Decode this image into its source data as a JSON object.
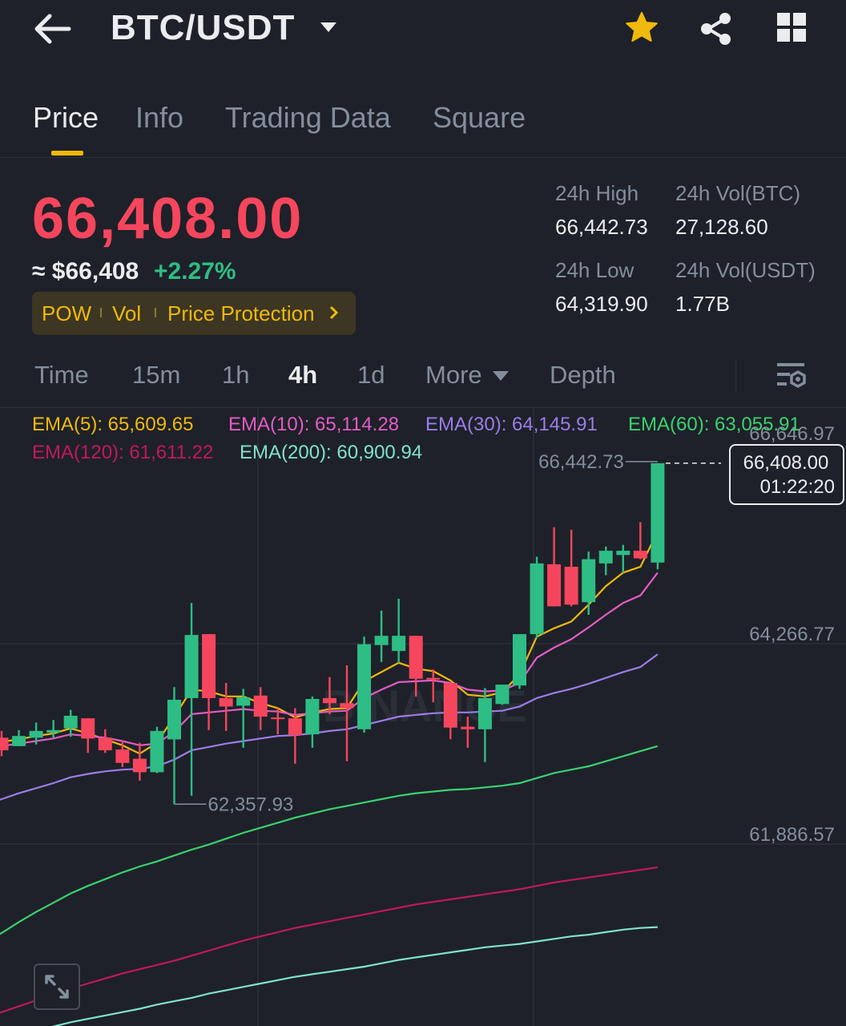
{
  "header": {
    "pair": "BTC/USDT",
    "back_icon": "arrow-left-icon",
    "caret_icon": "caret-down-icon",
    "favorite_icon": "star-icon",
    "share_icon": "share-icon",
    "menu_icon": "grid-icon"
  },
  "tabs": [
    {
      "label": "Price",
      "active": true
    },
    {
      "label": "Info",
      "active": false
    },
    {
      "label": "Trading Data",
      "active": false
    },
    {
      "label": "Square",
      "active": false
    }
  ],
  "price": {
    "last": "66,408.00",
    "usd": "≈ $66,408",
    "change_pct": "+2.27%",
    "tags": [
      "POW",
      "Vol",
      "Price Protection"
    ]
  },
  "stats": {
    "high_label": "24h High",
    "high_value": "66,442.73",
    "vol_btc_label": "24h Vol(BTC)",
    "vol_btc_value": "27,128.60",
    "low_label": "24h Low",
    "low_value": "64,319.90",
    "vol_usdt_label": "24h Vol(USDT)",
    "vol_usdt_value": "1.77B"
  },
  "intervals": {
    "items": [
      "Time",
      "15m",
      "1h",
      "4h",
      "1d",
      "More",
      "Depth"
    ],
    "active": "4h"
  },
  "ema_legend": [
    {
      "text": "EMA(5): 65,609.65",
      "color": "#f0b90b"
    },
    {
      "text": "EMA(10): 65,114.28",
      "color": "#e35bc6"
    },
    {
      "text": "EMA(30): 64,145.91",
      "color": "#9c7ce8"
    },
    {
      "text": "EMA(60): 63,055.91",
      "color": "#3bd16f"
    },
    {
      "text": "EMA(120): 61,611.22",
      "color": "#c2185b"
    },
    {
      "text": "EMA(200): 60,900.94",
      "color": "#7fe3c9"
    }
  ],
  "chart_data": {
    "type": "candlestick",
    "axis_labels": [
      "66,646.97",
      "64,266.77",
      "61,886.57"
    ],
    "axis_values": [
      66646.97,
      64266.77,
      61886.57
    ],
    "high_marker": "66,442.73",
    "low_marker": "62,357.93",
    "current_price": "66,408.00",
    "countdown": "01:22:20",
    "colors": {
      "up": "#2ebd85",
      "down": "#f6465d"
    },
    "candles": [
      {
        "o": 63150,
        "h": 63230,
        "l": 62930,
        "c": 63000
      },
      {
        "o": 63050,
        "h": 63240,
        "l": 63050,
        "c": 63170
      },
      {
        "o": 63150,
        "h": 63330,
        "l": 63070,
        "c": 63230
      },
      {
        "o": 63210,
        "h": 63360,
        "l": 63150,
        "c": 63240
      },
      {
        "o": 63260,
        "h": 63480,
        "l": 63160,
        "c": 63410
      },
      {
        "o": 63380,
        "h": 63380,
        "l": 62970,
        "c": 63140
      },
      {
        "o": 63150,
        "h": 63250,
        "l": 62970,
        "c": 63000
      },
      {
        "o": 63010,
        "h": 63120,
        "l": 62800,
        "c": 62850
      },
      {
        "o": 62900,
        "h": 63090,
        "l": 62640,
        "c": 62740
      },
      {
        "o": 62740,
        "h": 63280,
        "l": 62730,
        "c": 63230
      },
      {
        "o": 63130,
        "h": 63750,
        "l": 62360,
        "c": 63600
      },
      {
        "o": 63620,
        "h": 64750,
        "l": 62460,
        "c": 64370
      },
      {
        "o": 64380,
        "h": 64380,
        "l": 63240,
        "c": 63620
      },
      {
        "o": 63620,
        "h": 63800,
        "l": 63230,
        "c": 63520
      },
      {
        "o": 63530,
        "h": 63730,
        "l": 63030,
        "c": 63630
      },
      {
        "o": 63650,
        "h": 63750,
        "l": 63240,
        "c": 63400
      },
      {
        "o": 63390,
        "h": 63500,
        "l": 63190,
        "c": 63370
      },
      {
        "o": 63380,
        "h": 63500,
        "l": 62840,
        "c": 63180
      },
      {
        "o": 63190,
        "h": 63640,
        "l": 63030,
        "c": 63610
      },
      {
        "o": 63620,
        "h": 63870,
        "l": 63430,
        "c": 63560
      },
      {
        "o": 63560,
        "h": 64010,
        "l": 62870,
        "c": 63500
      },
      {
        "o": 63250,
        "h": 64350,
        "l": 63210,
        "c": 64260
      },
      {
        "o": 64250,
        "h": 64660,
        "l": 64050,
        "c": 64360
      },
      {
        "o": 64180,
        "h": 64800,
        "l": 64040,
        "c": 64360
      },
      {
        "o": 64360,
        "h": 64360,
        "l": 63640,
        "c": 63850
      },
      {
        "o": 63860,
        "h": 63960,
        "l": 63570,
        "c": 63850
      },
      {
        "o": 63800,
        "h": 63800,
        "l": 63130,
        "c": 63270
      },
      {
        "o": 63280,
        "h": 63400,
        "l": 63030,
        "c": 63250
      },
      {
        "o": 63250,
        "h": 63740,
        "l": 62860,
        "c": 63620
      },
      {
        "o": 63550,
        "h": 63770,
        "l": 63540,
        "c": 63780
      },
      {
        "o": 63770,
        "h": 64370,
        "l": 63730,
        "c": 64380
      },
      {
        "o": 64380,
        "h": 65300,
        "l": 64330,
        "c": 65220
      },
      {
        "o": 65210,
        "h": 65650,
        "l": 64710,
        "c": 64710
      },
      {
        "o": 65180,
        "h": 65620,
        "l": 64710,
        "c": 64730
      },
      {
        "o": 64760,
        "h": 65360,
        "l": 64610,
        "c": 65270
      },
      {
        "o": 65220,
        "h": 65420,
        "l": 65080,
        "c": 65370
      },
      {
        "o": 65320,
        "h": 65440,
        "l": 65110,
        "c": 65370
      },
      {
        "o": 65370,
        "h": 65710,
        "l": 65270,
        "c": 65280
      },
      {
        "o": 65230,
        "h": 66410,
        "l": 65150,
        "c": 66410
      }
    ],
    "ema": [
      {
        "name": "EMA(5)",
        "color": "#f0b90b",
        "values": [
          63100,
          63130,
          63170,
          63200,
          63260,
          63200,
          63130,
          63060,
          62960,
          63090,
          63400,
          63720,
          63700,
          63640,
          63640,
          63560,
          63500,
          63390,
          63450,
          63490,
          63500,
          63820,
          63930,
          64040,
          63970,
          63940,
          63830,
          63660,
          63640,
          63690,
          63900,
          64350,
          64450,
          64530,
          64730,
          64950,
          65110,
          65180,
          65600
        ]
      },
      {
        "name": "EMA(10)",
        "color": "#e35bc6",
        "values": [
          63050,
          63080,
          63110,
          63140,
          63190,
          63170,
          63150,
          63110,
          63060,
          63080,
          63220,
          63430,
          63450,
          63470,
          63490,
          63470,
          63460,
          63420,
          63440,
          63460,
          63470,
          63620,
          63720,
          63810,
          63820,
          63830,
          63800,
          63720,
          63700,
          63710,
          63800,
          64100,
          64220,
          64320,
          64460,
          64610,
          64750,
          64840,
          65110
        ]
      },
      {
        "name": "EMA(30)",
        "color": "#9c7ce8",
        "values": [
          62420,
          62490,
          62550,
          62610,
          62680,
          62720,
          62750,
          62770,
          62780,
          62810,
          62890,
          63000,
          63040,
          63080,
          63110,
          63140,
          63170,
          63180,
          63200,
          63230,
          63250,
          63300,
          63350,
          63400,
          63420,
          63440,
          63450,
          63450,
          63460,
          63470,
          63520,
          63620,
          63680,
          63730,
          63790,
          63860,
          63930,
          63990,
          64140
        ]
      },
      {
        "name": "EMA(60)",
        "color": "#3bd16f",
        "values": [
          60830,
          60960,
          61080,
          61190,
          61300,
          61390,
          61470,
          61550,
          61620,
          61680,
          61750,
          61820,
          61880,
          61950,
          62020,
          62080,
          62140,
          62200,
          62250,
          62300,
          62340,
          62380,
          62420,
          62460,
          62490,
          62510,
          62530,
          62540,
          62560,
          62580,
          62610,
          62670,
          62730,
          62770,
          62810,
          62870,
          62930,
          62990,
          63050
        ]
      },
      {
        "name": "EMA(120)",
        "color": "#c2185b",
        "values": [
          59890,
          59960,
          60030,
          60100,
          60170,
          60230,
          60290,
          60350,
          60400,
          60450,
          60500,
          60560,
          60620,
          60680,
          60740,
          60790,
          60840,
          60890,
          60930,
          60970,
          61010,
          61050,
          61090,
          61130,
          61170,
          61200,
          61230,
          61260,
          61290,
          61320,
          61350,
          61390,
          61430,
          61460,
          61490,
          61520,
          61550,
          61580,
          61610
        ]
      },
      {
        "name": "EMA(200)",
        "color": "#7fe3c9",
        "values": [
          59570,
          59620,
          59670,
          59720,
          59770,
          59810,
          59850,
          59890,
          59930,
          59980,
          60020,
          60060,
          60110,
          60150,
          60190,
          60230,
          60270,
          60310,
          60340,
          60370,
          60400,
          60430,
          60470,
          60510,
          60540,
          60570,
          60600,
          60630,
          60660,
          60680,
          60700,
          60730,
          60760,
          60790,
          60810,
          60840,
          60870,
          60890,
          60900
        ]
      }
    ]
  }
}
